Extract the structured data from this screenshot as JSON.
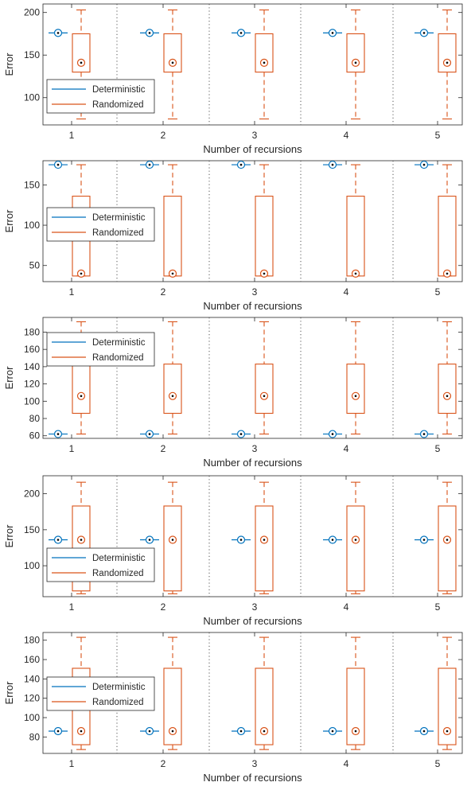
{
  "colors": {
    "deterministic": "#0072BD",
    "randomized": "#D95319",
    "axis": "#262626",
    "separator": "#555555"
  },
  "legend_placement": "left",
  "chart_data": [
    {
      "type": "boxplot",
      "xlabel": "Number of recursions",
      "ylabel": "Error",
      "categories": [
        "1",
        "2",
        "3",
        "4",
        "5"
      ],
      "ylim": [
        68,
        210
      ],
      "yticks": [
        100,
        150,
        200
      ],
      "legend": [
        "Deterministic",
        "Randomized"
      ],
      "deterministic": [
        176,
        176,
        176,
        176,
        176
      ],
      "randomized": {
        "whisker_low": [
          75,
          75,
          75,
          75,
          75
        ],
        "q1": [
          130,
          130,
          130,
          130,
          130
        ],
        "median": [
          141,
          141,
          141,
          141,
          141
        ],
        "q3": [
          175,
          175,
          175,
          175,
          175
        ],
        "whisker_high": [
          203,
          203,
          203,
          203,
          203
        ]
      }
    },
    {
      "type": "boxplot",
      "xlabel": "Number of recursions",
      "ylabel": "Error",
      "categories": [
        "1",
        "2",
        "3",
        "4",
        "5"
      ],
      "ylim": [
        30,
        180
      ],
      "yticks": [
        50,
        100,
        150
      ],
      "legend": [
        "Deterministic",
        "Randomized"
      ],
      "deterministic": [
        175,
        175,
        175,
        175,
        175
      ],
      "randomized": {
        "whisker_low": [
          37,
          37,
          37,
          37,
          37
        ],
        "q1": [
          37,
          37,
          37,
          37,
          37
        ],
        "median": [
          40,
          40,
          40,
          40,
          40
        ],
        "q3": [
          136,
          136,
          136,
          136,
          136
        ],
        "whisker_high": [
          175,
          175,
          175,
          175,
          175
        ]
      }
    },
    {
      "type": "boxplot",
      "xlabel": "Number of recursions",
      "ylabel": "Error",
      "categories": [
        "1",
        "2",
        "3",
        "4",
        "5"
      ],
      "ylim": [
        57,
        197
      ],
      "yticks": [
        60,
        80,
        100,
        120,
        140,
        160,
        180
      ],
      "legend": [
        "Deterministic",
        "Randomized"
      ],
      "deterministic": [
        62,
        62,
        62,
        62,
        62
      ],
      "randomized": {
        "whisker_low": [
          62,
          62,
          62,
          62,
          62
        ],
        "q1": [
          86,
          86,
          86,
          86,
          86
        ],
        "median": [
          106,
          106,
          106,
          106,
          106
        ],
        "q3": [
          143,
          143,
          143,
          143,
          143
        ],
        "whisker_high": [
          192,
          192,
          192,
          192,
          192
        ]
      }
    },
    {
      "type": "boxplot",
      "xlabel": "Number of recursions",
      "ylabel": "Error",
      "categories": [
        "1",
        "2",
        "3",
        "4",
        "5"
      ],
      "ylim": [
        57,
        225
      ],
      "yticks": [
        100,
        150,
        200
      ],
      "legend": [
        "Deterministic",
        "Randomized"
      ],
      "deterministic": [
        136,
        136,
        136,
        136,
        136
      ],
      "randomized": {
        "whisker_low": [
          61,
          61,
          61,
          61,
          61
        ],
        "q1": [
          65,
          65,
          65,
          65,
          65
        ],
        "median": [
          136,
          136,
          136,
          136,
          136
        ],
        "q3": [
          183,
          183,
          183,
          183,
          183
        ],
        "whisker_high": [
          216,
          216,
          216,
          216,
          216
        ]
      }
    },
    {
      "type": "boxplot",
      "xlabel": "Number of recursions",
      "ylabel": "Error",
      "categories": [
        "1",
        "2",
        "3",
        "4",
        "5"
      ],
      "ylim": [
        63,
        188
      ],
      "yticks": [
        80,
        100,
        120,
        140,
        160,
        180
      ],
      "legend": [
        "Deterministic",
        "Randomized"
      ],
      "deterministic": [
        86,
        86,
        86,
        86,
        86
      ],
      "randomized": {
        "whisker_low": [
          67,
          67,
          67,
          67,
          67
        ],
        "q1": [
          72,
          72,
          72,
          72,
          72
        ],
        "median": [
          86,
          86,
          86,
          86,
          86
        ],
        "q3": [
          151,
          151,
          151,
          151,
          151
        ],
        "whisker_high": [
          183,
          183,
          183,
          183,
          183
        ]
      }
    }
  ]
}
